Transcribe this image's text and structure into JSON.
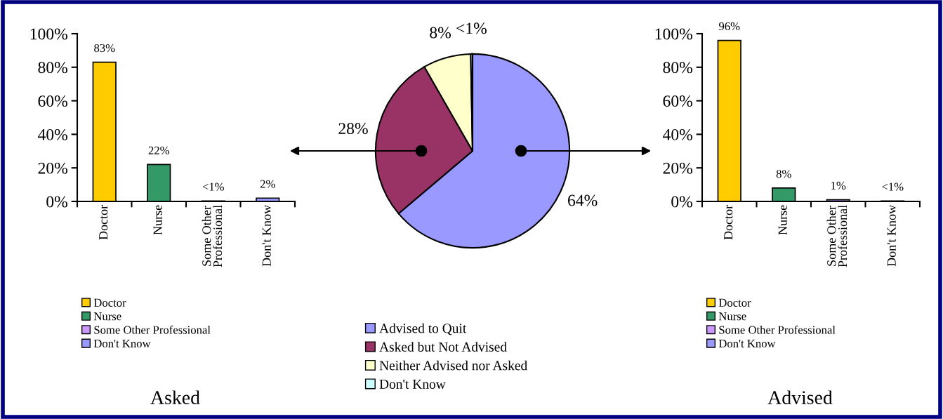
{
  "chart_data": [
    {
      "type": "bar",
      "title": "Asked",
      "categories": [
        "Doctor",
        "Nurse",
        "Some Other Professional",
        "Don't Know"
      ],
      "stacked": true,
      "series": [
        {
          "name": "Doctor",
          "color": "#ffcc00",
          "values": [
            83,
            null,
            null,
            null
          ],
          "value_labels": [
            "83%",
            null,
            null,
            null
          ]
        },
        {
          "name": "Nurse",
          "color": "#339966",
          "values": [
            null,
            22,
            null,
            null
          ],
          "value_labels": [
            null,
            "22%",
            null,
            null
          ]
        },
        {
          "name": "Some Other Professional",
          "color": "#cc99ff",
          "values": [
            null,
            null,
            0.3,
            null
          ],
          "value_labels": [
            null,
            null,
            "<1%",
            null
          ]
        },
        {
          "name": "Don't Know",
          "color": "#9999ff",
          "values": [
            null,
            null,
            null,
            2
          ],
          "value_labels": [
            null,
            null,
            null,
            "2%"
          ]
        }
      ],
      "ylim": [
        0,
        100
      ],
      "yticks": [
        {
          "value": 0,
          "label": "0%"
        },
        {
          "value": 20,
          "label": "20%"
        },
        {
          "value": 40,
          "label": "40%"
        },
        {
          "value": 60,
          "label": "60%"
        },
        {
          "value": 80,
          "label": "80%"
        },
        {
          "value": 100,
          "label": "100%"
        }
      ],
      "grid": false,
      "legend": "bottom"
    },
    {
      "type": "pie",
      "categories": [
        "Advised to Quit",
        "Asked but Not Advised",
        "Neither Advised nor Asked",
        "Don't Know"
      ],
      "values": [
        64,
        28,
        8,
        0.3
      ],
      "colors": [
        "#9999ff",
        "#993366",
        "#ffffcc",
        "#ccffff"
      ],
      "value_labels": [
        "64%",
        "28%",
        "8%",
        "<1%"
      ],
      "legend": "bottom"
    },
    {
      "type": "bar",
      "title": "Advised",
      "categories": [
        "Doctor",
        "Nurse",
        "Some Other Professional",
        "Don't Know"
      ],
      "stacked": true,
      "series": [
        {
          "name": "Doctor",
          "color": "#ffcc00",
          "values": [
            96,
            null,
            null,
            null
          ],
          "value_labels": [
            "96%",
            null,
            null,
            null
          ]
        },
        {
          "name": "Nurse",
          "color": "#339966",
          "values": [
            null,
            8,
            null,
            null
          ],
          "value_labels": [
            null,
            "8%",
            null,
            null
          ]
        },
        {
          "name": "Some Other Professional",
          "color": "#cc99ff",
          "values": [
            null,
            null,
            1,
            null
          ],
          "value_labels": [
            null,
            null,
            "1%",
            null
          ]
        },
        {
          "name": "Don't Know",
          "color": "#9999ff",
          "values": [
            null,
            null,
            null,
            0.3
          ],
          "value_labels": [
            null,
            null,
            null,
            "<1%"
          ]
        }
      ],
      "ylim": [
        0,
        100
      ],
      "yticks": [
        {
          "value": 0,
          "label": "0%"
        },
        {
          "value": 20,
          "label": "20%"
        },
        {
          "value": 40,
          "label": "40%"
        },
        {
          "value": 60,
          "label": "60%"
        },
        {
          "value": 80,
          "label": "80%"
        },
        {
          "value": 100,
          "label": "100%"
        }
      ],
      "grid": false,
      "legend": "bottom"
    }
  ]
}
